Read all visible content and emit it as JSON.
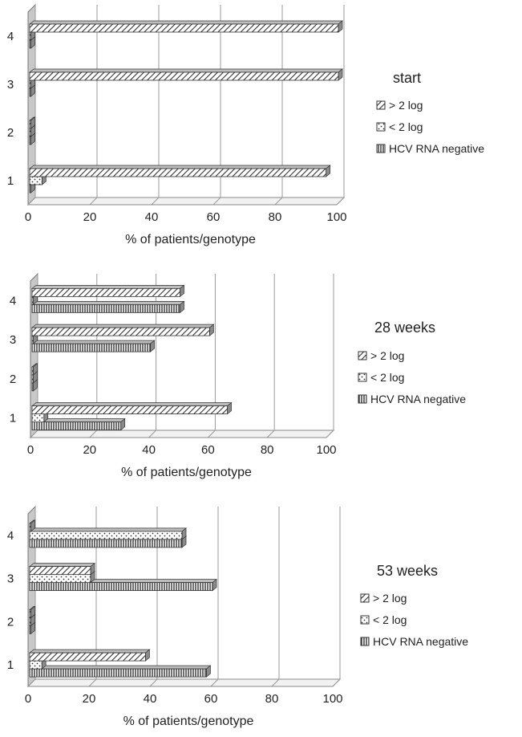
{
  "chart_data": [
    {
      "type": "bar",
      "orientation": "horizontal",
      "title": "start",
      "xlabel": "% of patients/genotype",
      "ylabel": "",
      "categories": [
        "1",
        "2",
        "3",
        "4"
      ],
      "xlim": [
        0,
        100
      ],
      "xticks": [
        "0",
        "20",
        "40",
        "60",
        "80",
        "100"
      ],
      "grid": true,
      "legend_position": "right",
      "series": [
        {
          "name": "HCV RNA negative",
          "pattern": "vertical-stripes",
          "values": [
            0,
            0,
            0,
            0
          ]
        },
        {
          "name": "< 2 log",
          "pattern": "dots",
          "values": [
            4,
            0,
            0,
            0
          ]
        },
        {
          "name": "> 2 log",
          "pattern": "diagonal-stripes",
          "values": [
            96,
            0,
            100,
            100
          ]
        }
      ]
    },
    {
      "type": "bar",
      "orientation": "horizontal",
      "title": "28 weeks",
      "xlabel": "% of patients/genotype",
      "ylabel": "",
      "categories": [
        "1",
        "2",
        "3",
        "4"
      ],
      "xlim": [
        0,
        100
      ],
      "xticks": [
        "0",
        "20",
        "40",
        "60",
        "80",
        "100"
      ],
      "grid": true,
      "legend_position": "right",
      "series": [
        {
          "name": "HCV RNA negative",
          "pattern": "vertical-stripes",
          "values": [
            30,
            0,
            40,
            50
          ]
        },
        {
          "name": "< 2 log",
          "pattern": "dots",
          "values": [
            4,
            0,
            0,
            0
          ]
        },
        {
          "name": "> 2 log",
          "pattern": "diagonal-stripes",
          "values": [
            66,
            0,
            60,
            50
          ]
        }
      ]
    },
    {
      "type": "bar",
      "orientation": "horizontal",
      "title": "53 weeks",
      "xlabel": "% of patients/genotype",
      "ylabel": "",
      "categories": [
        "1",
        "2",
        "3",
        "4"
      ],
      "xlim": [
        0,
        100
      ],
      "xticks": [
        "0",
        "20",
        "40",
        "60",
        "80",
        "100"
      ],
      "grid": true,
      "legend_position": "right",
      "series": [
        {
          "name": "HCV RNA negative",
          "pattern": "vertical-stripes",
          "values": [
            58,
            0,
            60,
            50
          ]
        },
        {
          "name": "< 2 log",
          "pattern": "dots",
          "values": [
            4,
            0,
            20,
            50
          ]
        },
        {
          "name": "> 2 log",
          "pattern": "diagonal-stripes",
          "values": [
            38,
            0,
            20,
            0
          ]
        }
      ]
    }
  ],
  "legend_order": [
    "> 2 log",
    "< 2 log",
    "HCV RNA negative"
  ]
}
